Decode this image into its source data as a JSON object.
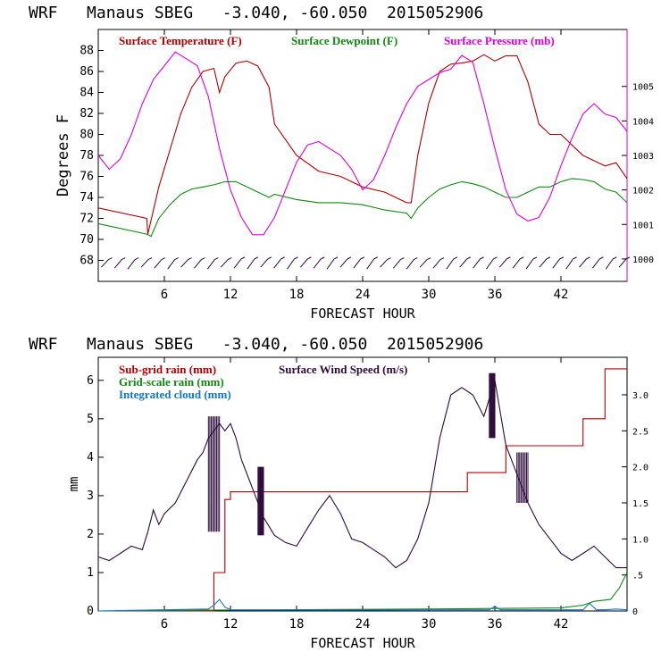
{
  "colors": {
    "temperature": "#b00000",
    "dewpoint": "#118811",
    "pressure": "#dd00dd",
    "wind": "#2a0a3a",
    "subgrid": "#b00000",
    "gridscale": "#118811",
    "cloud": "#1177cc",
    "axis": "#000000"
  },
  "chart_data": [
    {
      "type": "line",
      "title": "WRF   Manaus SBEG   -3.040, -60.050  2015052906",
      "xlabel": "FORECAST HOUR",
      "ylabel": "Degrees F",
      "xlim": [
        0,
        48
      ],
      "ylim": [
        66,
        90
      ],
      "xticks": [
        6,
        12,
        18,
        24,
        30,
        36,
        42
      ],
      "yticks": [
        68,
        70,
        72,
        74,
        76,
        78,
        80,
        82,
        84,
        86,
        88
      ],
      "y2lim": [
        999.35,
        1006.65
      ],
      "y2ticks": [
        1000,
        1001,
        1002,
        1003,
        1004,
        1005
      ],
      "y2label": "Surface Pressure (mb)",
      "legend": [
        "Surface Temperature (F)",
        "Surface Dewpoint (F)",
        "Surface Pressure (mb)"
      ],
      "series": [
        {
          "name": "Surface Temperature (F)",
          "axis": "left",
          "x": [
            0,
            4.4,
            4.5,
            5.5,
            6.5,
            7.5,
            8.5,
            9.5,
            10.5,
            11.0,
            11.5,
            12.5,
            13.5,
            14.5,
            15.5,
            16.0,
            17.0,
            18.0,
            20.0,
            22.0,
            24.0,
            26.0,
            28.0,
            28.4,
            29.0,
            30.0,
            31.0,
            32.0,
            33.0,
            34.0,
            35.0,
            36.0,
            37.0,
            38.0,
            39.0,
            40.0,
            41.0,
            42.0,
            43.0,
            44.0,
            45.0,
            46.0,
            47.0,
            48.0
          ],
          "values": [
            73.0,
            72.0,
            70.5,
            75.0,
            78.5,
            82.0,
            84.5,
            86.0,
            86.3,
            84.0,
            85.5,
            86.8,
            87.0,
            86.5,
            84.5,
            81.0,
            79.5,
            78.0,
            76.5,
            76.0,
            75.0,
            74.5,
            73.5,
            73.5,
            78.0,
            83.0,
            86.0,
            86.7,
            86.8,
            87.0,
            87.6,
            87.0,
            87.5,
            87.5,
            85.0,
            81.0,
            80.0,
            80.0,
            79.0,
            78.0,
            77.5,
            77.0,
            77.3,
            75.8
          ]
        },
        {
          "name": "Surface Dewpoint (F)",
          "axis": "left",
          "x": [
            0,
            4.4,
            4.8,
            5.5,
            6.5,
            7.5,
            8.5,
            9.5,
            10.5,
            11.5,
            12.5,
            13.5,
            14.5,
            15.5,
            16.0,
            18.0,
            20.0,
            22.0,
            24.0,
            26.0,
            28.0,
            28.4,
            29.0,
            30.0,
            31.0,
            32.0,
            33.0,
            34.0,
            35.0,
            36.0,
            37.0,
            38.0,
            39.0,
            40.0,
            41.0,
            42.0,
            43.0,
            44.0,
            45.0,
            46.0,
            47.0,
            48.0
          ],
          "values": [
            71.5,
            70.5,
            70.3,
            72.0,
            73.3,
            74.3,
            74.8,
            75.0,
            75.2,
            75.5,
            75.5,
            75.0,
            74.5,
            74.0,
            74.3,
            73.8,
            73.5,
            73.5,
            73.3,
            72.8,
            72.5,
            72.0,
            73.0,
            74.0,
            74.8,
            75.2,
            75.5,
            75.3,
            75.0,
            74.5,
            74.0,
            74.0,
            74.5,
            75.0,
            75.0,
            75.5,
            75.8,
            75.7,
            75.5,
            74.8,
            74.5,
            73.5
          ]
        },
        {
          "name": "Surface Pressure (mb)",
          "axis": "right",
          "x": [
            0,
            1.0,
            2.0,
            3.0,
            4.0,
            5.0,
            6.0,
            7.0,
            8.0,
            9.0,
            10.0,
            11.0,
            12.0,
            13.0,
            14.0,
            15.0,
            16.0,
            17.0,
            18.0,
            19.0,
            20.0,
            21.0,
            22.0,
            23.0,
            24.0,
            25.0,
            26.0,
            27.0,
            28.0,
            29.0,
            30.0,
            31.0,
            32.0,
            33.0,
            34.0,
            35.0,
            36.0,
            37.0,
            38.0,
            39.0,
            40.0,
            41.0,
            42.0,
            43.0,
            44.0,
            45.0,
            46.0,
            47.0,
            48.0
          ],
          "values": [
            1003.0,
            1002.6,
            1002.9,
            1003.6,
            1004.5,
            1005.2,
            1005.6,
            1006.0,
            1005.8,
            1005.6,
            1004.7,
            1003.2,
            1002.0,
            1001.2,
            1000.7,
            1000.7,
            1001.2,
            1002.0,
            1002.8,
            1003.3,
            1003.4,
            1003.2,
            1003.0,
            1002.6,
            1002.0,
            1002.3,
            1003.0,
            1003.8,
            1004.5,
            1005.0,
            1005.2,
            1005.4,
            1005.5,
            1005.9,
            1005.7,
            1004.5,
            1003.2,
            1002.0,
            1001.3,
            1001.1,
            1001.2,
            1001.8,
            1002.7,
            1003.5,
            1004.2,
            1004.5,
            1004.2,
            1004.1,
            1003.7
          ]
        }
      ],
      "wind_barbs": {
        "note": "surface wind barbs along 68 F line",
        "count": 40
      }
    },
    {
      "type": "line",
      "title": "WRF   Manaus SBEG   -3.040, -60.050  2015052906",
      "xlabel": "FORECAST HOUR",
      "ylabel": "mm",
      "xlim": [
        0,
        48
      ],
      "ylim": [
        0,
        6.6
      ],
      "xticks": [
        6,
        12,
        18,
        24,
        30,
        36,
        42
      ],
      "yticks": [
        0,
        1,
        2,
        3,
        4,
        5,
        6
      ],
      "y2lim": [
        0,
        3.52
      ],
      "y2ticks": [
        0,
        0.5,
        1.0,
        1.5,
        2.0,
        2.5,
        3.0
      ],
      "y2ticklabels": [
        "0",
        ".5",
        "1.0",
        "1.5",
        "2.0",
        "2.5",
        "3.0"
      ],
      "legend": [
        "Sub-grid rain (mm)",
        "Grid-scale rain (mm)",
        "Integrated cloud (mm)",
        "Surface Wind Speed (m/s)"
      ],
      "series": [
        {
          "name": "Sub-grid rain (mm)",
          "axis": "left",
          "step": true,
          "x": [
            0,
            9.5,
            10.5,
            11.5,
            12.0,
            33.0,
            33.5,
            36.5,
            37.0,
            43.5,
            44.0,
            45.5,
            46.0,
            48.0
          ],
          "values": [
            0,
            0,
            1.0,
            2.9,
            3.1,
            3.1,
            3.6,
            3.6,
            4.3,
            4.3,
            5.0,
            5.0,
            6.3,
            6.3
          ]
        },
        {
          "name": "Grid-scale rain (mm)",
          "axis": "left",
          "x": [
            0,
            10.0,
            30.0,
            42.0,
            44.0,
            45.0,
            46.5,
            47.3,
            48.0
          ],
          "values": [
            0,
            0.02,
            0.05,
            0.08,
            0.15,
            0.25,
            0.3,
            0.6,
            1.0
          ]
        },
        {
          "name": "Integrated cloud (mm)",
          "axis": "left",
          "x": [
            0,
            10.0,
            10.5,
            11.0,
            11.5,
            12.0,
            20.0,
            30.0,
            35.5,
            36.0,
            36.5,
            40.0,
            44.0,
            44.6,
            45.2,
            46.0,
            47.0,
            48.0
          ],
          "values": [
            0,
            0.05,
            0.15,
            0.3,
            0.1,
            0.03,
            0.02,
            0.03,
            0.03,
            0.12,
            0.03,
            0.03,
            0.03,
            0.2,
            0.03,
            0.03,
            0.05,
            0.03
          ]
        },
        {
          "name": "Surface Wind Speed (m/s)",
          "axis": "right",
          "x": [
            0,
            1.0,
            2.0,
            3.0,
            4.0,
            4.5,
            5.0,
            5.5,
            6.0,
            7.0,
            8.0,
            9.0,
            9.5,
            10.0,
            10.5,
            11.0,
            11.5,
            12.0,
            12.5,
            13.0,
            14.0,
            15.0,
            16.0,
            17.0,
            18.0,
            19.0,
            20.0,
            21.0,
            22.0,
            23.0,
            24.0,
            25.0,
            26.0,
            27.0,
            28.0,
            29.0,
            30.0,
            31.0,
            32.0,
            33.0,
            34.0,
            35.0,
            36.0,
            37.0,
            38.0,
            39.0,
            40.0,
            41.0,
            42.0,
            43.0,
            44.0,
            45.0,
            46.0,
            47.0,
            48.0
          ],
          "values": [
            0.75,
            0.7,
            0.8,
            0.9,
            0.85,
            1.1,
            1.4,
            1.2,
            1.35,
            1.5,
            1.8,
            2.1,
            2.2,
            2.4,
            2.5,
            2.6,
            2.5,
            2.6,
            2.4,
            2.1,
            1.7,
            1.3,
            1.05,
            0.95,
            0.9,
            1.15,
            1.4,
            1.6,
            1.35,
            1.0,
            0.95,
            0.85,
            0.75,
            0.6,
            0.7,
            1.0,
            1.5,
            2.4,
            3.0,
            3.1,
            3.0,
            2.7,
            3.2,
            2.3,
            1.9,
            1.5,
            1.2,
            1.0,
            0.8,
            0.7,
            0.8,
            0.9,
            0.75,
            0.6,
            0.6
          ]
        }
      ],
      "wind_spikes": [
        {
          "from": 10.0,
          "to": 11.0,
          "min": 1.1,
          "max": 2.7
        },
        {
          "from": 14.5,
          "to": 15.0,
          "min": 1.05,
          "max": 2.0
        },
        {
          "from": 35.5,
          "to": 36.0,
          "min": 2.4,
          "max": 3.3
        },
        {
          "from": 38.0,
          "to": 39.0,
          "min": 1.5,
          "max": 2.2
        }
      ]
    }
  ]
}
